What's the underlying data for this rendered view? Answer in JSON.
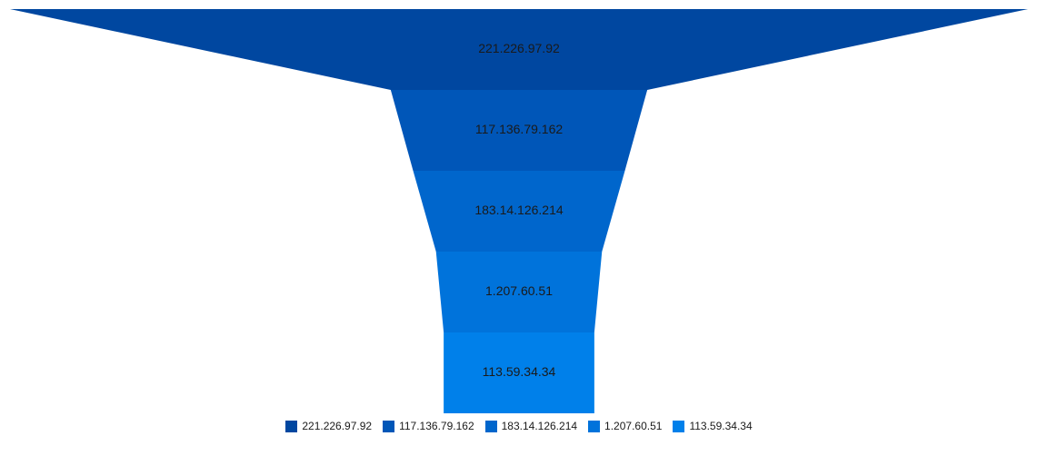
{
  "chart_data": {
    "type": "funnel",
    "title": "",
    "stages": [
      {
        "label": "221.226.97.92",
        "value": 100,
        "color": "#0047a0"
      },
      {
        "label": "117.136.79.162",
        "value": 25.2,
        "color": "#0056b8"
      },
      {
        "label": "183.14.126.214",
        "value": 20.8,
        "color": "#0066cc"
      },
      {
        "label": "1.207.60.51",
        "value": 16.3,
        "color": "#0073db"
      },
      {
        "label": "113.59.34.34",
        "value": 14.8,
        "color": "#0080ea"
      }
    ],
    "legend": {
      "position": "bottom",
      "items": [
        "221.226.97.92",
        "117.136.79.162",
        "183.14.126.214",
        "1.207.60.51",
        "113.59.34.34"
      ]
    }
  }
}
